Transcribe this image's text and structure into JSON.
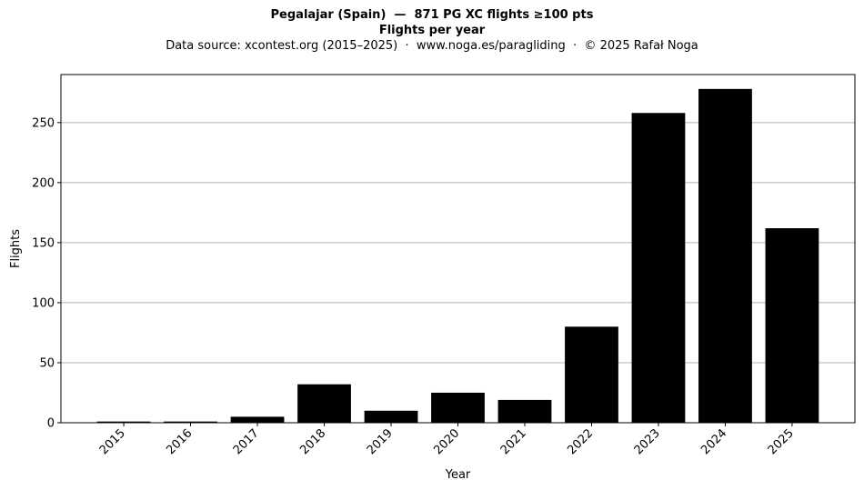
{
  "chart_data": {
    "type": "bar",
    "title": "Pegalajar (Spain)  —  871 PG XC flights ≥100 pts",
    "subtitle": "Flights per year",
    "source_note": "Data source: xcontest.org (2015–2025)  ·  www.noga.es/paragliding  ·  © 2025 Rafał Noga",
    "xlabel": "Year",
    "ylabel": "Flights",
    "categories": [
      "2015",
      "2016",
      "2017",
      "2018",
      "2019",
      "2020",
      "2021",
      "2022",
      "2023",
      "2024",
      "2025"
    ],
    "values": [
      1,
      1,
      5,
      32,
      10,
      25,
      19,
      80,
      258,
      278,
      162
    ],
    "ylim": [
      0,
      290
    ],
    "yticks": [
      0,
      50,
      100,
      150,
      200,
      250
    ],
    "grid": "y",
    "bar_color": "#000000",
    "grid_color": "#b0b0b0"
  }
}
